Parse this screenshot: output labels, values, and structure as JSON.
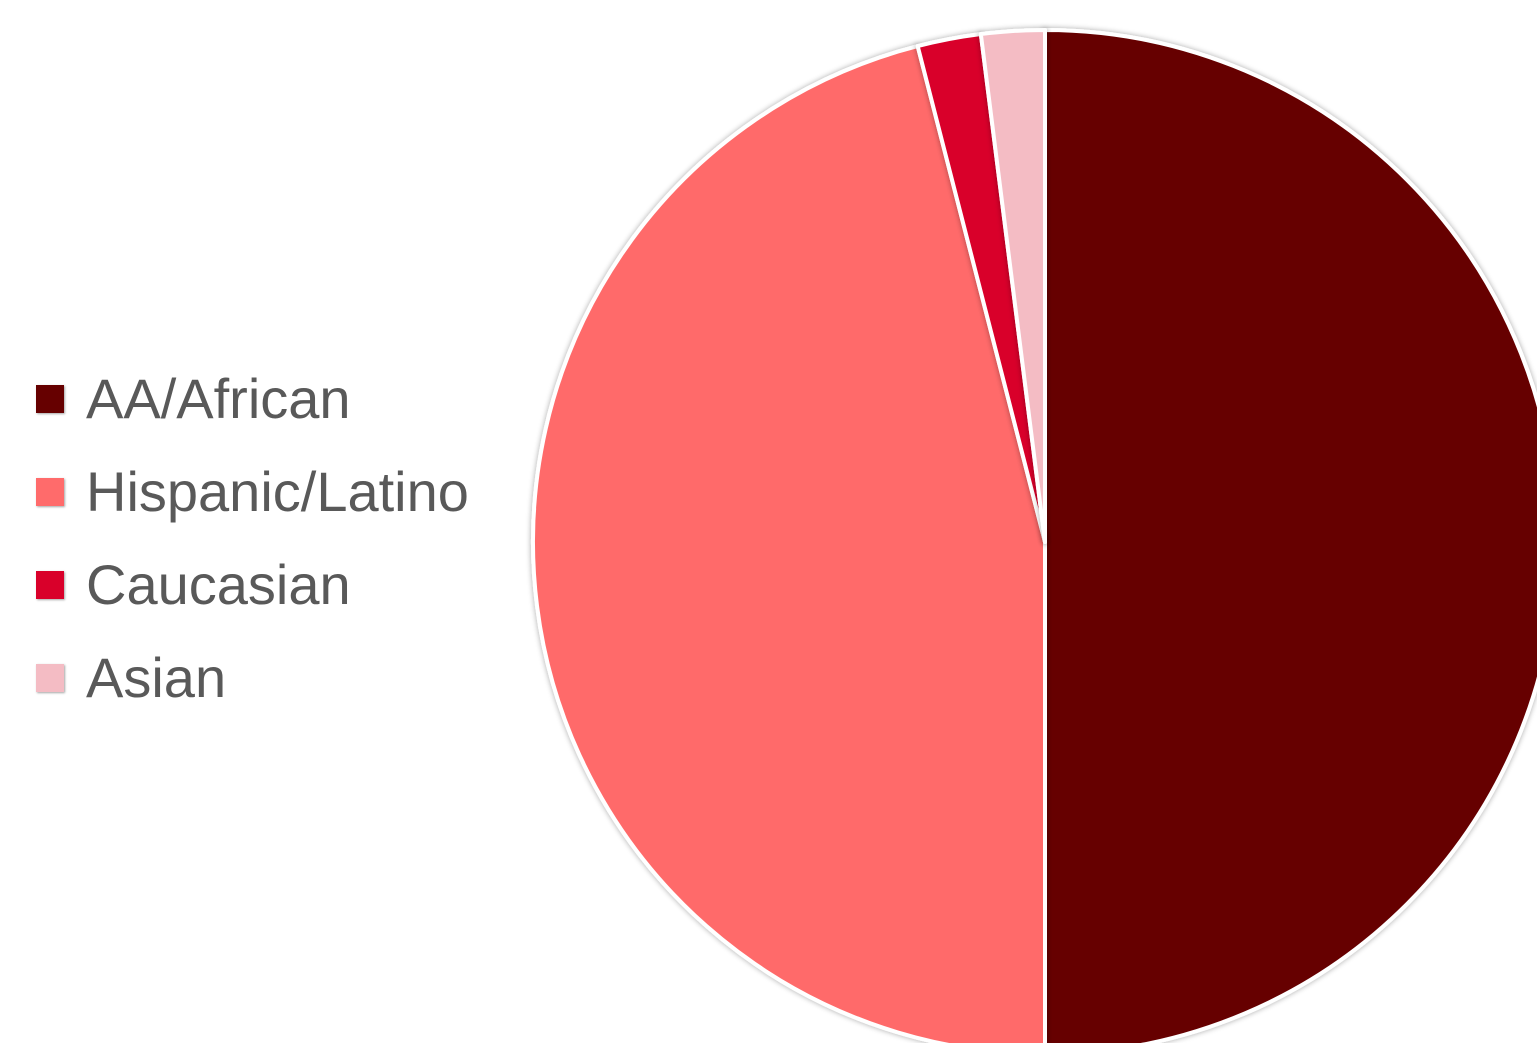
{
  "chart_data": {
    "type": "pie",
    "title": "",
    "legend_position": "left",
    "slices": [
      {
        "label": "AA/African",
        "value": 50,
        "color": "#660000"
      },
      {
        "label": "Hispanic/Latino",
        "value": 46,
        "color": "#FF6B6B"
      },
      {
        "label": "Caucasian",
        "value": 2,
        "color": "#D9002A"
      },
      {
        "label": "Asian",
        "value": 2,
        "color": "#F4BCC4"
      }
    ],
    "start_angle": "12 o'clock",
    "direction": "clockwise"
  }
}
